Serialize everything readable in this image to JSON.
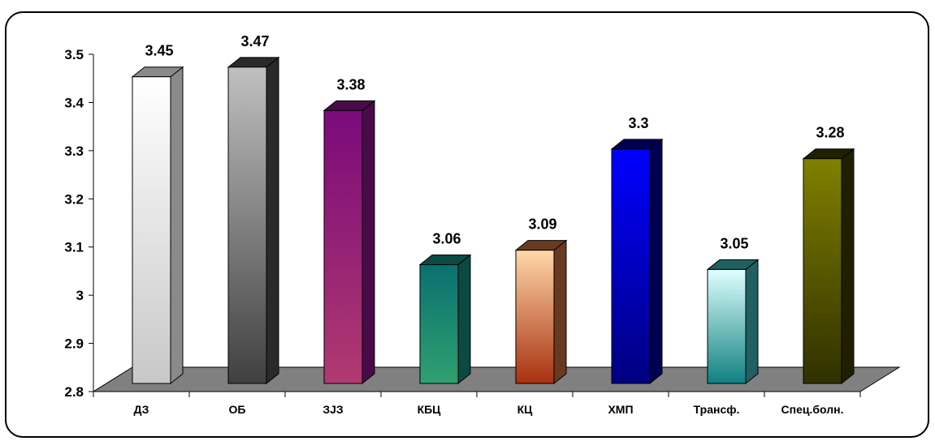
{
  "chart_data": {
    "type": "bar",
    "categories": [
      "ДЗ",
      "ОБ",
      "ЗЈЗ",
      "КБЦ",
      "КЦ",
      "ХМП",
      "Трансф.",
      "Спец.болн."
    ],
    "values": [
      3.45,
      3.47,
      3.38,
      3.06,
      3.09,
      3.3,
      3.05,
      3.28
    ],
    "data_labels": [
      "3.45",
      "3.47",
      "3.38",
      "3.06",
      "3.09",
      "3.3",
      "3.05",
      "3.28"
    ],
    "y_tick_labels": [
      "2.8",
      "2.9",
      "3",
      "3.1",
      "3.2",
      "3.3",
      "3.4",
      "3.5"
    ],
    "ylim": [
      2.8,
      3.5
    ],
    "title": "",
    "xlabel": "",
    "ylabel": "",
    "grid": false,
    "legend": "none",
    "bar_colors": [
      {
        "top": "#ffffff",
        "bottom": "#c8c8c8",
        "side": "#8a8a8a"
      },
      {
        "top": "#c0c0c0",
        "bottom": "#404040",
        "side": "#2a2a2a"
      },
      {
        "top": "#7a0a7a",
        "bottom": "#b03a70",
        "side": "#4a0a4a"
      },
      {
        "top": "#0a7070",
        "bottom": "#30a070",
        "side": "#0a4a40"
      },
      {
        "top": "#ffd8a8",
        "bottom": "#a83010",
        "side": "#6a3a20"
      },
      {
        "top": "#0000ff",
        "bottom": "#000080",
        "side": "#000050"
      },
      {
        "top": "#e0ffff",
        "bottom": "#108080",
        "side": "#206060"
      },
      {
        "top": "#808000",
        "bottom": "#303000",
        "side": "#202000"
      }
    ],
    "floor_color": "#808080"
  }
}
